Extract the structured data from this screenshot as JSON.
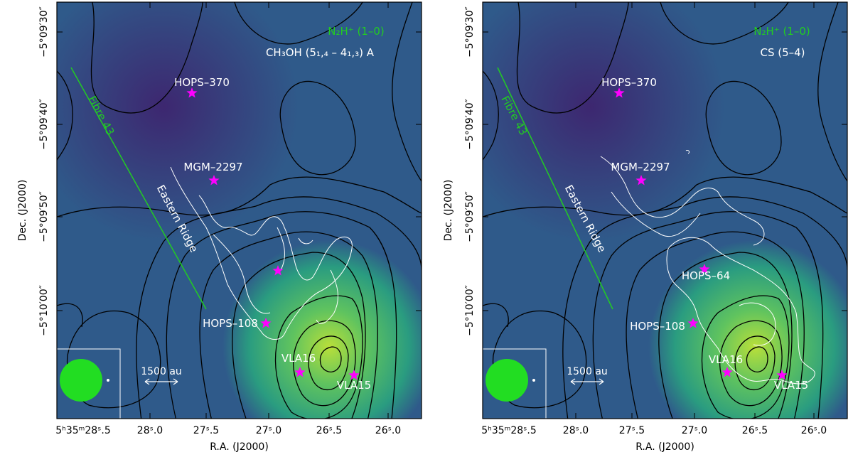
{
  "colors": {
    "background_dark": "#3b2d6e",
    "background_mid": "#2f6c8e",
    "peak_light": "#b9df3a",
    "contour": "#000000",
    "overlay_contour": "#ffffff",
    "source_marker": "#ff00ff",
    "line_label": "#22cc22",
    "beam": "#22dd22"
  },
  "panels": [
    {
      "line_top": "N₂H⁺ (1–0)",
      "line_bottom": "CH₃OH (5₁,₄ – 4₁,₃) A",
      "fibre_label": "Fibre 43",
      "ridge_label": "Eastern Ridge",
      "scalebar_label": "1500 au",
      "sources": [
        {
          "name": "HOPS–370",
          "marker": "star-icon"
        },
        {
          "name": "MGM–2297",
          "marker": "star-icon"
        },
        {
          "name": "",
          "marker": "star-icon"
        },
        {
          "name": "HOPS–108",
          "marker": "star-icon"
        },
        {
          "name": "VLA16",
          "marker": "star-icon"
        },
        {
          "name": "VLA15",
          "marker": "star-icon"
        }
      ],
      "xticks": [
        "5ʰ35ᵐ28ˢ.5",
        "28ˢ.0",
        "27ˢ.5",
        "27ˢ.0",
        "26ˢ.5",
        "26ˢ.0"
      ],
      "yticks": [
        "−5°09′30″",
        "−5°09′40″",
        "−5°09′50″",
        "−5°10′00″"
      ],
      "xlabel": "R.A. (J2000)",
      "ylabel": "Dec. (J2000)"
    },
    {
      "line_top": "N₂H⁺ (1–0)",
      "line_bottom": "CS (5–4)",
      "fibre_label": "Fibre 43",
      "ridge_label": "Eastern Ridge",
      "scalebar_label": "1500 au",
      "sources": [
        {
          "name": "HOPS–370",
          "marker": "star-icon"
        },
        {
          "name": "MGM–2297",
          "marker": "star-icon"
        },
        {
          "name": "HOPS–64",
          "marker": "star-icon"
        },
        {
          "name": "HOPS–108",
          "marker": "star-icon"
        },
        {
          "name": "VLA16",
          "marker": "star-icon"
        },
        {
          "name": "VLA15",
          "marker": "star-icon"
        }
      ],
      "xticks": [
        "5ʰ35ᵐ28ˢ.5",
        "28ˢ.0",
        "27ˢ.5",
        "27ˢ.0",
        "26ˢ.5",
        "26ˢ.0"
      ],
      "yticks": [
        "−5°09′30″",
        "−5°09′40″",
        "−5°09′50″",
        "−5°10′00″"
      ],
      "xlabel": "R.A. (J2000)",
      "ylabel": "Dec. (J2000)"
    }
  ]
}
